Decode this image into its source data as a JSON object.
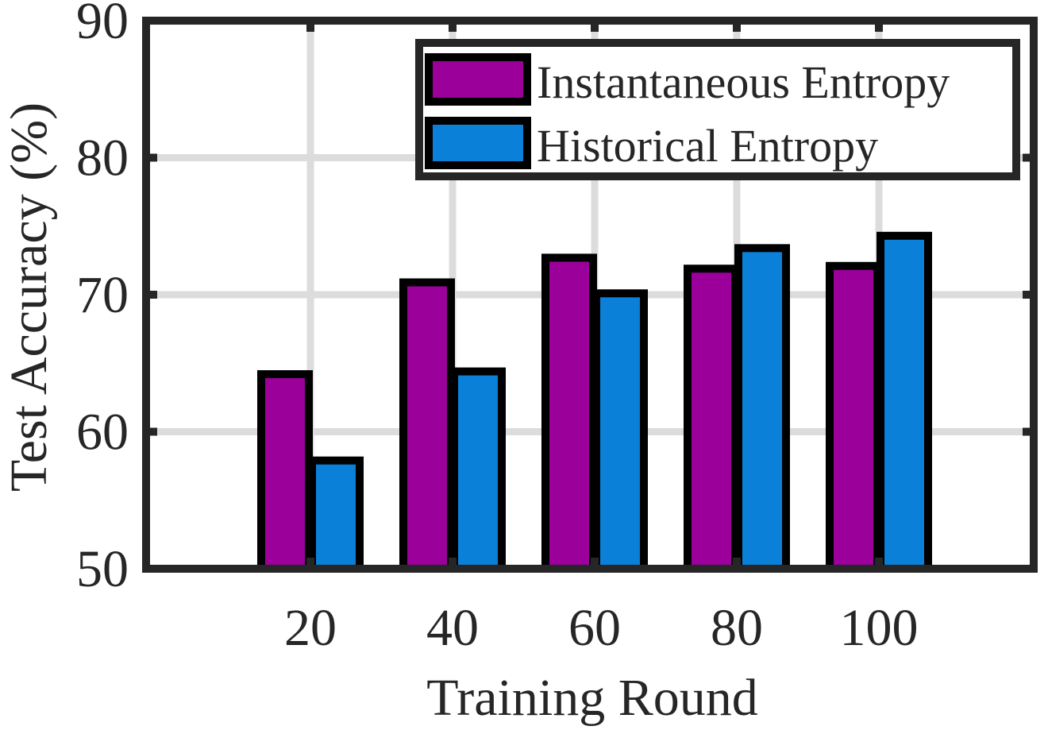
{
  "chart_data": {
    "type": "bar",
    "title": "",
    "xlabel": "Training Round",
    "ylabel": "Test Accuracy (%)",
    "categories": [
      "20",
      "40",
      "60",
      "80",
      "100"
    ],
    "ylim": [
      50,
      90
    ],
    "yticks": [
      50,
      60,
      70,
      80,
      90
    ],
    "grid": true,
    "legend_position": "top-right",
    "series": [
      {
        "name": "Instantaneous Entropy",
        "color": "#9b009b",
        "values": [
          64.2,
          70.9,
          72.7,
          71.9,
          72.1
        ]
      },
      {
        "name": "Historical Entropy",
        "color": "#0a80d8",
        "values": [
          57.9,
          64.4,
          70.1,
          73.4,
          74.3
        ]
      }
    ]
  }
}
